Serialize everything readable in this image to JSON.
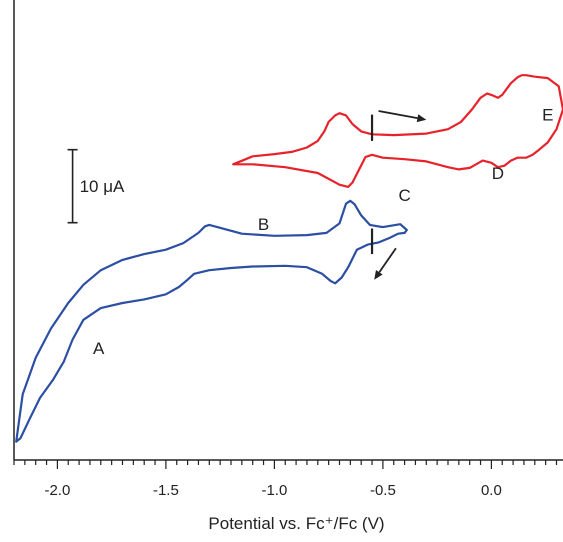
{
  "chart_data": {
    "type": "line",
    "title": "",
    "xlabel": "Potential vs. Fc⁺/Fc (V)",
    "ylabel": "",
    "xlim": [
      -2.2,
      0.33
    ],
    "ylim": [
      -44,
      19
    ],
    "x_ticks": [
      -2.0,
      -1.5,
      -1.0,
      -0.5,
      0.0
    ],
    "x_tick_labels": [
      "-2.0",
      "-1.5",
      "-1.0",
      "-0.5",
      "0.0"
    ],
    "grid": false,
    "legend": "none",
    "scale_bar": {
      "label": "10 μA",
      "x": -1.93,
      "y_from": -11.5,
      "y_to": -1.5
    },
    "peak_labels": [
      {
        "text": "A",
        "x": -1.81,
        "y": -29.5
      },
      {
        "text": "B",
        "x": -1.05,
        "y": -12.5
      },
      {
        "text": "C",
        "x": -0.4,
        "y": -8.5
      },
      {
        "text": "D",
        "x": 0.03,
        "y": -5.5
      },
      {
        "text": "E",
        "x": 0.26,
        "y": 2.5
      }
    ],
    "series": [
      {
        "color": "#2c4fa3",
        "x": [
          -0.39,
          -0.42,
          -0.5,
          -0.56,
          -0.6,
          -0.63,
          -0.65,
          -0.67,
          -0.7,
          -0.76,
          -0.85,
          -1.0,
          -1.15,
          -1.25,
          -1.3,
          -1.32,
          -1.35,
          -1.42,
          -1.5,
          -1.6,
          -1.7,
          -1.8,
          -1.88,
          -1.95,
          -2.03,
          -2.1,
          -2.16,
          -2.19,
          -2.17,
          -2.13,
          -2.08,
          -2.02,
          -1.97,
          -1.93,
          -1.88,
          -1.8,
          -1.7,
          -1.6,
          -1.5,
          -1.44,
          -1.4,
          -1.37,
          -1.3,
          -1.2,
          -1.1,
          -0.95,
          -0.85,
          -0.78,
          -0.74,
          -0.72,
          -0.69,
          -0.66,
          -0.62,
          -0.57,
          -0.52,
          -0.47,
          -0.43,
          -0.4,
          -0.39
        ],
        "y": [
          -12.5,
          -11.7,
          -12.1,
          -11.8,
          -10.5,
          -9.0,
          -8.5,
          -8.9,
          -11.6,
          -12.9,
          -13.2,
          -13.3,
          -13.0,
          -12.2,
          -11.8,
          -12.0,
          -12.9,
          -14.3,
          -15.2,
          -15.8,
          -16.6,
          -18.0,
          -20.0,
          -22.5,
          -26.0,
          -30.0,
          -35.0,
          -41.5,
          -41.0,
          -38.5,
          -35.5,
          -33.0,
          -30.5,
          -27.5,
          -24.8,
          -23.2,
          -22.5,
          -22.0,
          -21.3,
          -20.3,
          -19.3,
          -18.5,
          -18.0,
          -17.7,
          -17.5,
          -17.4,
          -17.6,
          -18.5,
          -19.5,
          -19.8,
          -19.0,
          -17.6,
          -15.2,
          -14.5,
          -14.2,
          -13.6,
          -13.0,
          -12.9,
          -12.5
        ]
      },
      {
        "color": "#e8222a",
        "x": [
          -1.19,
          -1.1,
          -1.0,
          -0.92,
          -0.85,
          -0.8,
          -0.77,
          -0.75,
          -0.72,
          -0.7,
          -0.67,
          -0.64,
          -0.6,
          -0.55,
          -0.45,
          -0.3,
          -0.2,
          -0.14,
          -0.09,
          -0.05,
          -0.02,
          0.0,
          0.03,
          0.05,
          0.09,
          0.12,
          0.14,
          0.16,
          0.2,
          0.26,
          0.31,
          0.33,
          0.3,
          0.26,
          0.22,
          0.19,
          0.16,
          0.12,
          0.09,
          0.06,
          0.03,
          0.0,
          -0.04,
          -0.1,
          -0.15,
          -0.2,
          -0.3,
          -0.4,
          -0.5,
          -0.55,
          -0.58,
          -0.62,
          -0.64,
          -0.66,
          -0.7,
          -0.8,
          -0.95,
          -1.1,
          -1.19
        ],
        "y": [
          -3.5,
          -2.4,
          -2.1,
          -1.8,
          -1.2,
          -0.3,
          1.0,
          2.3,
          3.2,
          3.5,
          3.2,
          2.0,
          1.0,
          0.6,
          0.5,
          0.7,
          1.3,
          2.3,
          4.0,
          5.6,
          6.2,
          6.0,
          5.6,
          6.0,
          7.6,
          8.4,
          8.7,
          8.7,
          8.5,
          8.3,
          7.2,
          4.0,
          1.3,
          -0.5,
          -1.5,
          -2.2,
          -2.6,
          -2.6,
          -3.0,
          -3.7,
          -3.9,
          -3.3,
          -3.0,
          -4.0,
          -4.2,
          -3.9,
          -3.1,
          -2.8,
          -2.6,
          -2.2,
          -2.5,
          -4.8,
          -6.0,
          -6.6,
          -6.3,
          -4.7,
          -3.9,
          -3.5,
          -3.5
        ]
      }
    ],
    "direction_arrows": [
      {
        "color": "#222222",
        "x1": -0.52,
        "y1": 3.8,
        "x2": -0.3,
        "y2": 2.6
      },
      {
        "color": "#222222",
        "x1": -0.44,
        "y1": -15.0,
        "x2": -0.54,
        "y2": -19.3
      }
    ],
    "cursor_marks": [
      {
        "color": "#222222",
        "x": -0.55,
        "y_from": -0.3,
        "y_to": 3.3
      },
      {
        "color": "#222222",
        "x": -0.55,
        "y_from": -15.8,
        "y_to": -12.3
      }
    ]
  }
}
